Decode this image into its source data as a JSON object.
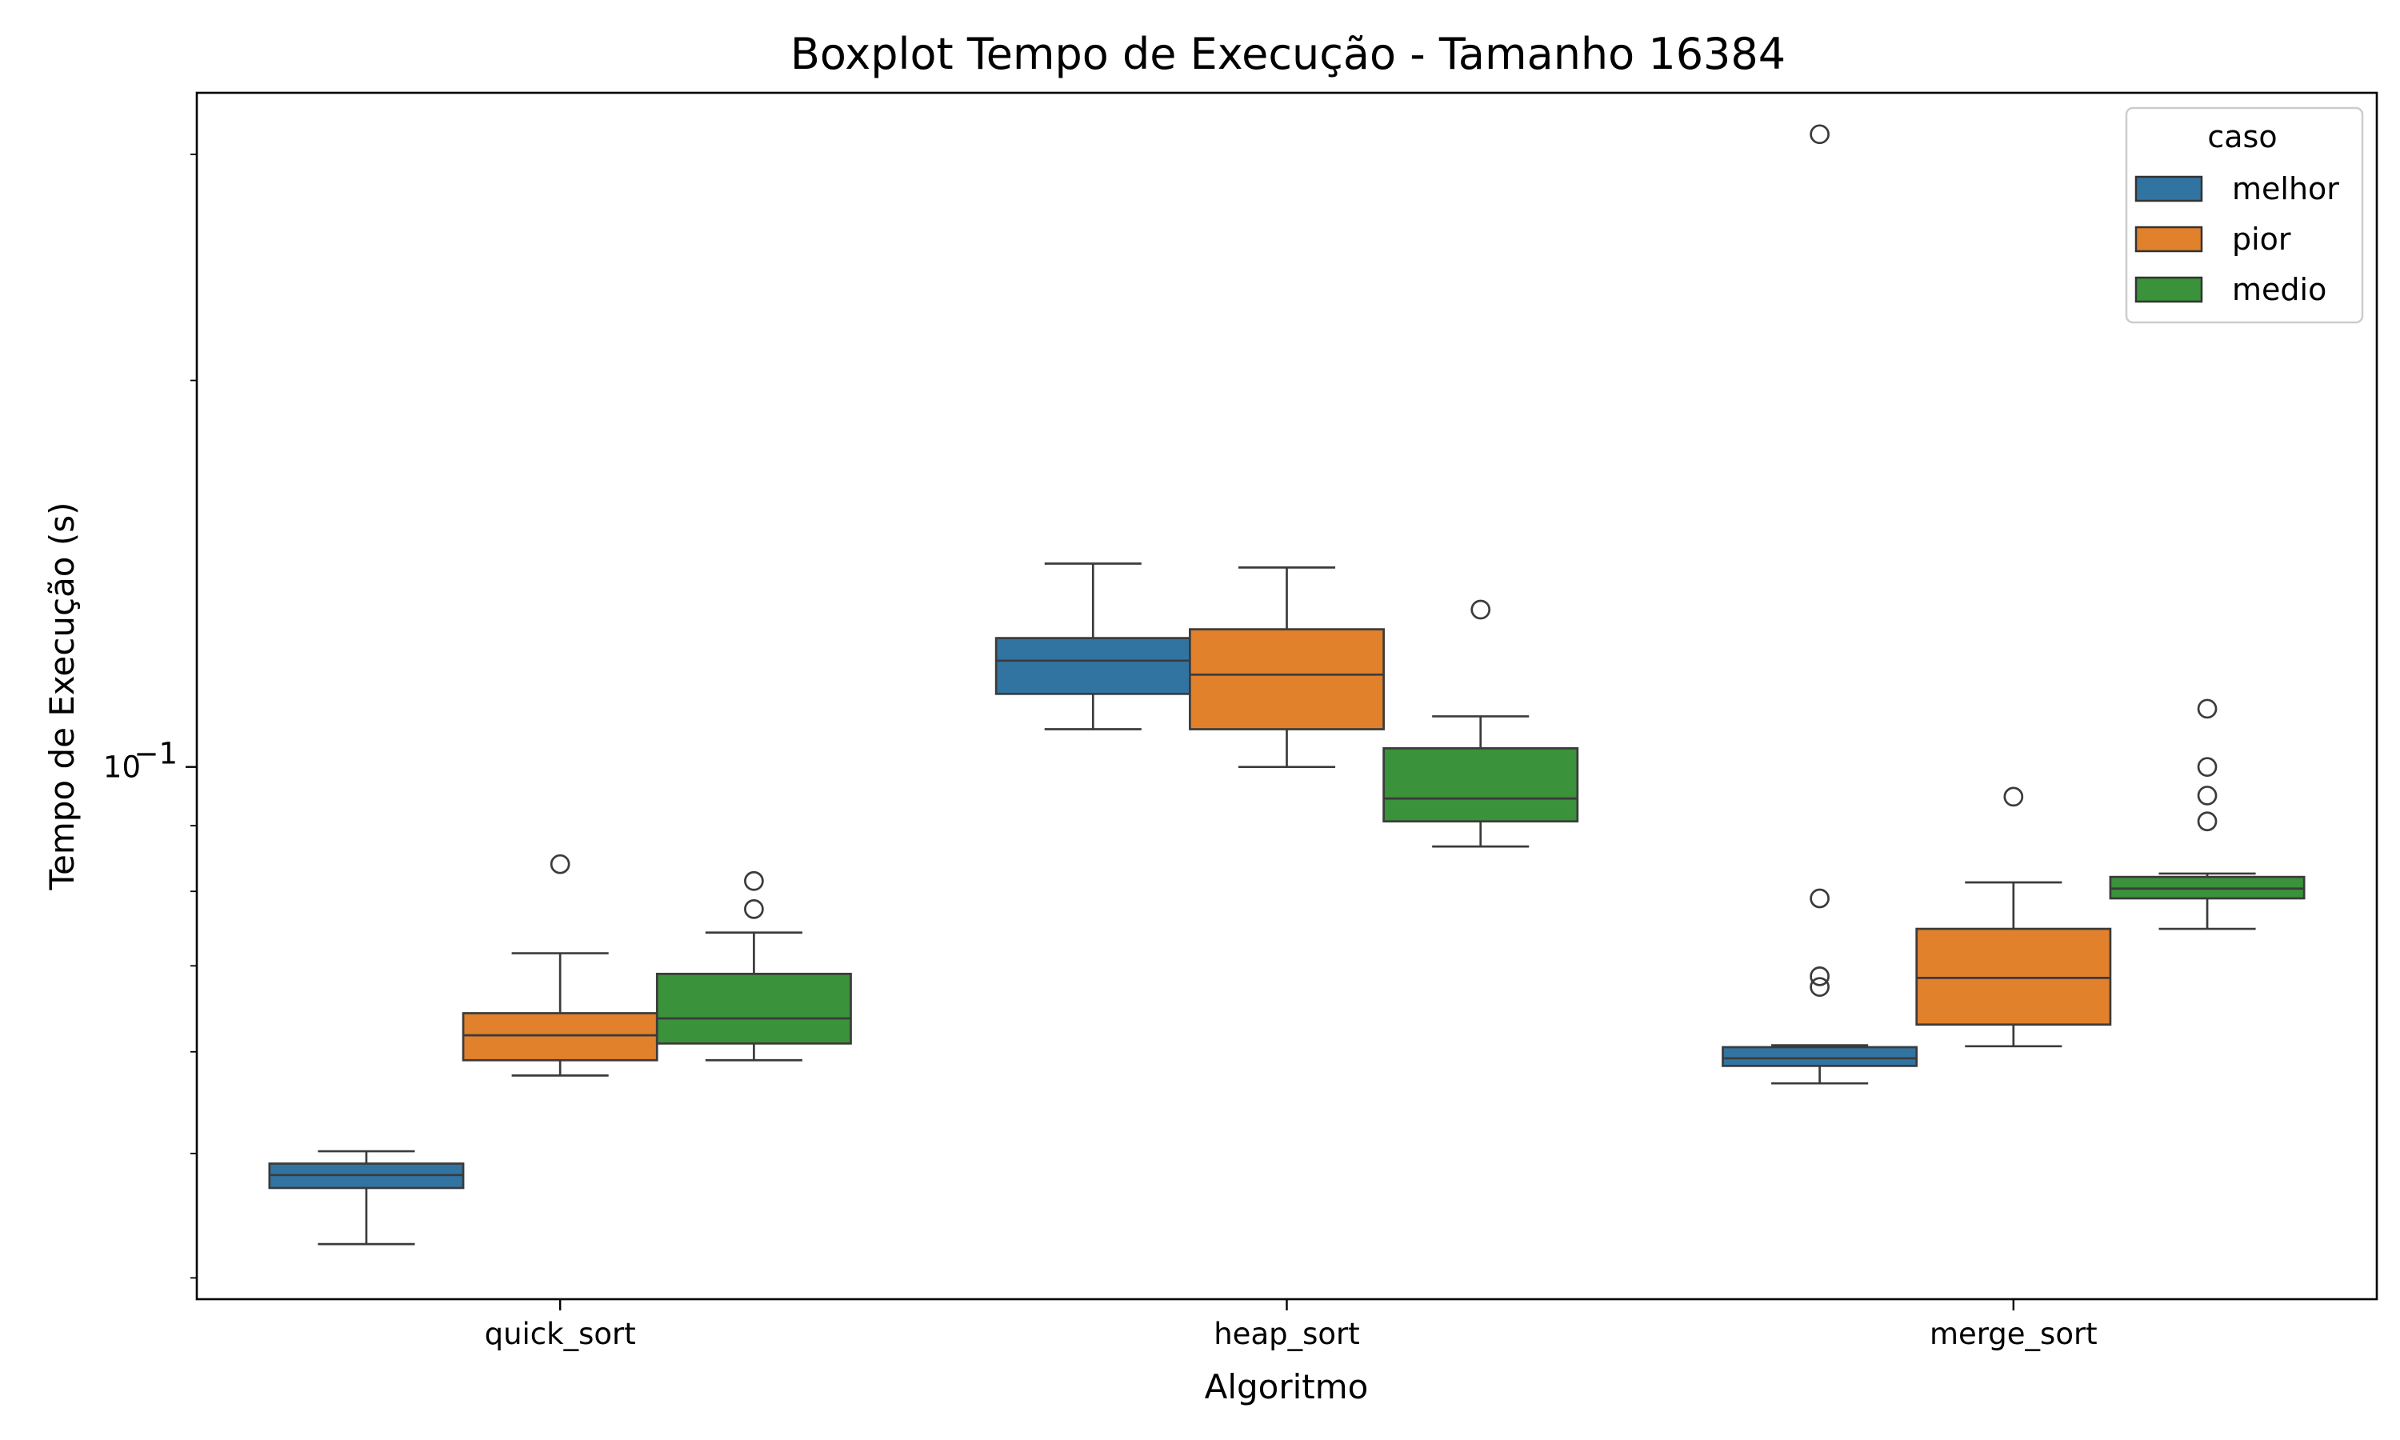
{
  "chart_data": {
    "type": "box",
    "title": "Boxplot Tempo de Execução - Tamanho 16384",
    "xlabel": "Algoritmo",
    "ylabel": "Tempo de Execução (s)",
    "yscale": "log",
    "ylim": [
      0.0385,
      0.335
    ],
    "y_tick_labels": [
      {
        "value": 0.1,
        "label": "10",
        "exponent": "−1"
      }
    ],
    "y_minor_ticks": [
      0.04,
      0.05,
      0.06,
      0.07,
      0.08,
      0.09,
      0.2,
      0.3
    ],
    "categories": [
      "quick_sort",
      "heap_sort",
      "merge_sort"
    ],
    "legend": {
      "title": "caso",
      "position": "top-right"
    },
    "series": [
      {
        "name": "melhor",
        "color": "#3274a1",
        "boxes": [
          {
            "whisker_low": 0.0425,
            "q1": 0.047,
            "median": 0.0481,
            "q3": 0.0491,
            "whisker_high": 0.0502,
            "outliers": []
          },
          {
            "whisker_low": 0.107,
            "q1": 0.114,
            "median": 0.121,
            "q3": 0.126,
            "whisker_high": 0.144,
            "outliers": []
          },
          {
            "whisker_low": 0.0567,
            "q1": 0.0585,
            "median": 0.0593,
            "q3": 0.0605,
            "whisker_high": 0.0607,
            "outliers": [
              0.079,
              0.0687,
              0.0674,
              0.311
            ]
          }
        ]
      },
      {
        "name": "pior",
        "color": "#e1812c",
        "boxes": [
          {
            "whisker_low": 0.0575,
            "q1": 0.0591,
            "median": 0.0618,
            "q3": 0.0643,
            "whisker_high": 0.0716,
            "outliers": [
              0.084
            ]
          },
          {
            "whisker_low": 0.1,
            "q1": 0.107,
            "median": 0.118,
            "q3": 0.128,
            "whisker_high": 0.143,
            "outliers": []
          },
          {
            "whisker_low": 0.0606,
            "q1": 0.063,
            "median": 0.0685,
            "q3": 0.0748,
            "whisker_high": 0.0813,
            "outliers": [
              0.0948
            ]
          }
        ]
      },
      {
        "name": "medio",
        "color": "#3a923a",
        "boxes": [
          {
            "whisker_low": 0.0591,
            "q1": 0.0609,
            "median": 0.0637,
            "q3": 0.069,
            "whisker_high": 0.0743,
            "outliers": [
              0.0775,
              0.0815
            ]
          },
          {
            "whisker_low": 0.0867,
            "q1": 0.0907,
            "median": 0.0945,
            "q3": 0.1034,
            "whisker_high": 0.1095,
            "outliers": [
              0.1326
            ]
          },
          {
            "whisker_low": 0.0748,
            "q1": 0.079,
            "median": 0.0804,
            "q3": 0.0821,
            "whisker_high": 0.0826,
            "outliers": [
              0.0907,
              0.095,
              0.1,
              0.111
            ]
          }
        ]
      }
    ]
  }
}
